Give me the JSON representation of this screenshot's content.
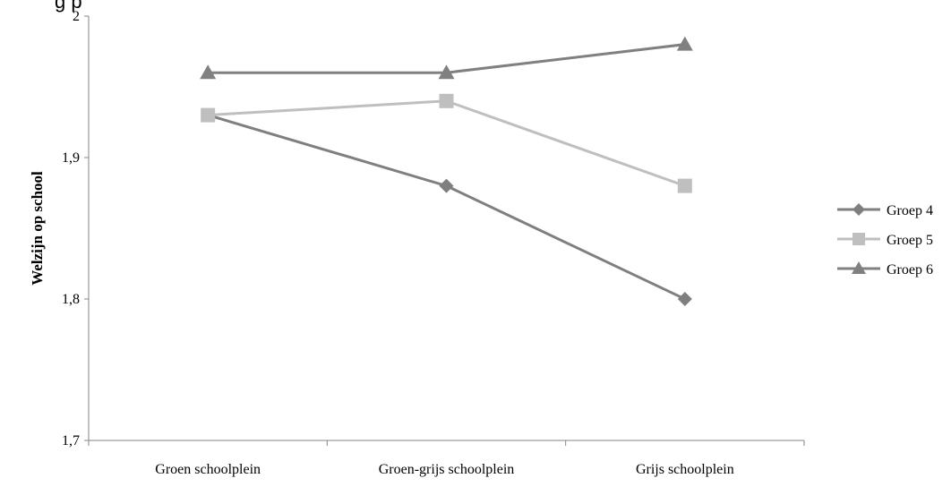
{
  "header_fragment": "g   p",
  "chart_data": {
    "type": "line",
    "title": "",
    "xlabel": "",
    "ylabel": "Welzijn op school",
    "categories": [
      "Groen schoolplein",
      "Groen-grijs schoolplein",
      "Grijs schoolplein"
    ],
    "ylim": [
      1.7,
      2.0
    ],
    "yticks": [
      1.7,
      1.8,
      1.9,
      2.0
    ],
    "ytick_labels": [
      "1,7",
      "1,8",
      "1,9",
      "2"
    ],
    "grid": false,
    "legend_position": "right",
    "series": [
      {
        "name": "Groep 4",
        "values": [
          1.93,
          1.88,
          1.8
        ],
        "color": "#7f7f7f",
        "marker": "diamond"
      },
      {
        "name": "Groep 5",
        "values": [
          1.93,
          1.94,
          1.88
        ],
        "color": "#bfbfbf",
        "marker": "square"
      },
      {
        "name": "Groep 6",
        "values": [
          1.96,
          1.96,
          1.98
        ],
        "color": "#808080",
        "marker": "triangle"
      }
    ]
  }
}
